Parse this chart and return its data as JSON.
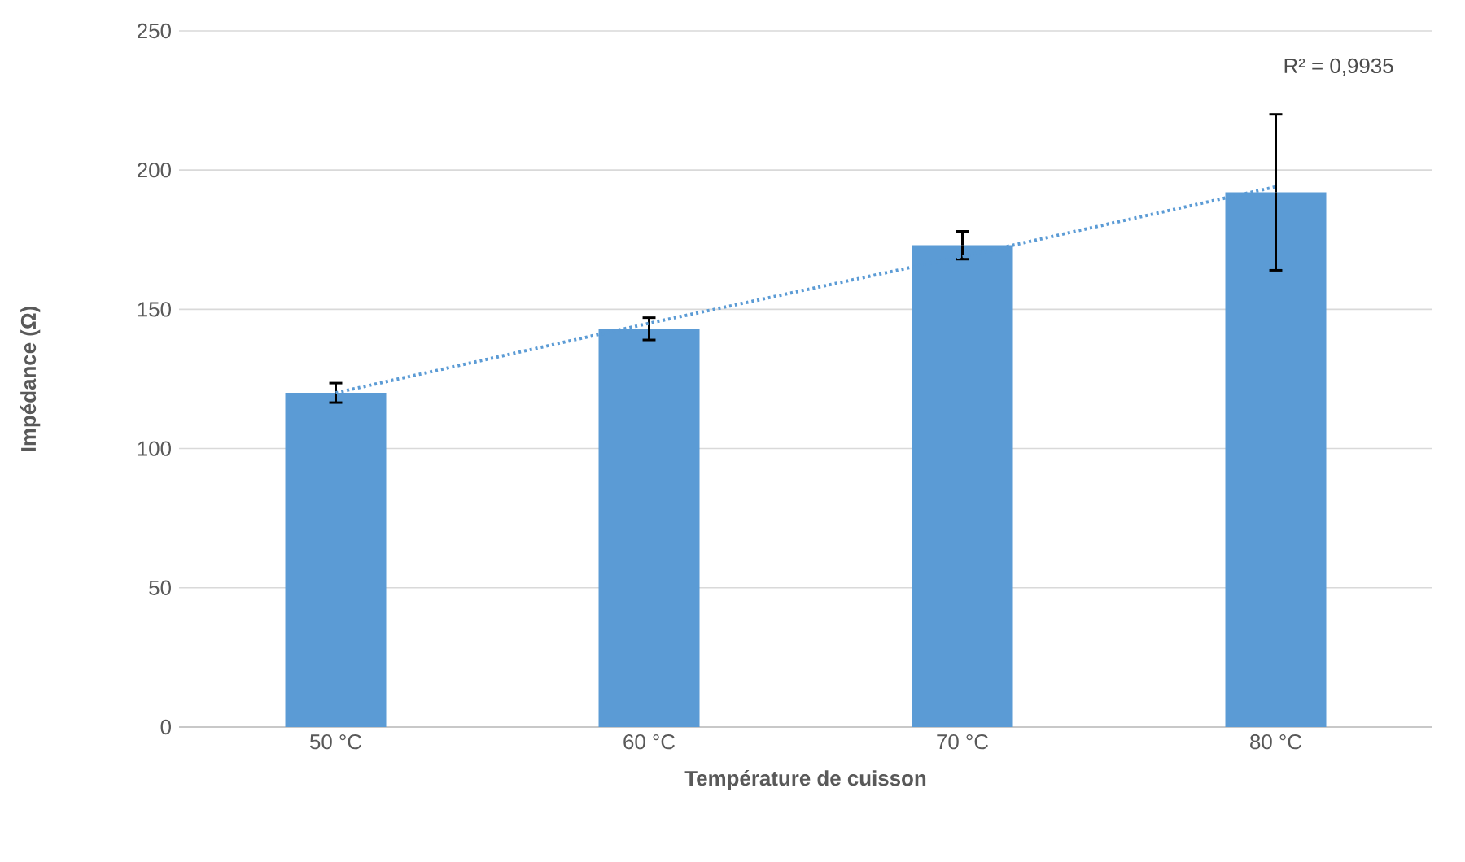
{
  "chart_data": {
    "type": "bar",
    "xlabel": "Température de cuisson",
    "ylabel": "Impédance (Ω)",
    "categories": [
      "50 °C",
      "60 °C",
      "70 °C",
      "80 °C"
    ],
    "series": [
      {
        "color": "#5b9bd5",
        "values": [
          120,
          143,
          173,
          192
        ],
        "errors": [
          3.5,
          4,
          5,
          28
        ]
      },
      {
        "type": "line",
        "color": "#5b9bd5",
        "line_style": "dotted",
        "values": [
          120,
          145,
          169,
          194
        ]
      }
    ],
    "ylim": [
      0,
      250
    ],
    "yticks": [
      0,
      50,
      100,
      150,
      200,
      250
    ],
    "grid": "y",
    "annotations": [
      "R² = 0,9935"
    ]
  }
}
